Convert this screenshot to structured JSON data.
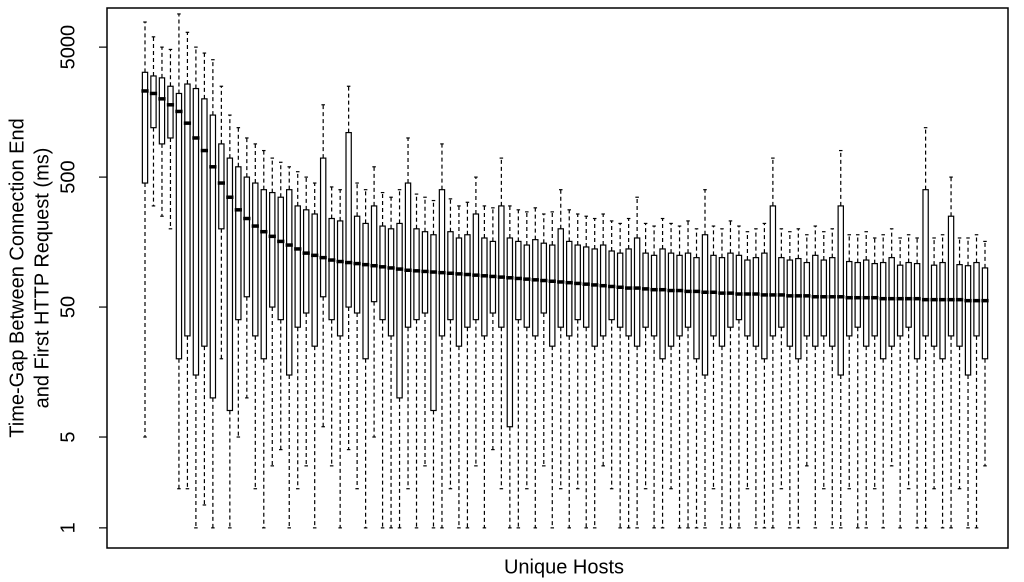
{
  "chart_data": {
    "type": "box",
    "x_label": "Unique Hosts",
    "y_label": [
      "Time-Gap Between Connection End",
      "and First HTTP Request (ms)"
    ],
    "log_y": true,
    "ylim": [
      0.7,
      10000
    ],
    "yticks": [
      1,
      5,
      50,
      500,
      5000
    ],
    "color": "#000000",
    "categories": [
      null,
      null,
      null,
      null,
      null,
      null,
      null,
      null,
      null,
      null,
      null,
      null,
      null,
      null,
      null,
      null,
      null,
      null,
      null,
      null,
      null,
      null,
      null,
      null,
      null,
      null,
      null,
      null,
      null,
      null,
      null,
      null,
      null,
      null,
      null,
      null,
      null,
      null,
      null,
      null,
      null,
      null,
      null,
      null,
      null,
      null,
      null,
      null,
      null,
      null,
      null,
      null,
      null,
      null,
      null,
      null,
      null,
      null,
      null,
      null,
      null,
      null,
      null,
      null,
      null,
      null,
      null,
      null,
      null,
      null,
      null,
      null,
      null,
      null,
      null,
      null,
      null,
      null,
      null,
      null,
      null,
      null,
      null,
      null,
      null,
      null,
      null,
      null,
      null,
      null,
      null,
      null,
      null,
      null,
      null,
      null,
      null,
      null,
      null,
      null
    ],
    "lows": [
      5,
      300,
      250,
      200,
      2,
      2,
      1,
      1.5,
      1,
      20,
      1,
      5,
      10,
      2,
      1,
      3,
      4,
      1,
      2,
      3,
      1,
      6,
      3,
      1,
      4,
      2,
      1,
      5,
      1,
      1,
      1,
      2,
      1,
      3,
      1,
      1,
      2,
      1,
      1,
      3,
      1,
      4,
      2,
      1,
      1,
      2,
      1,
      3,
      1,
      2,
      1,
      2,
      1,
      1,
      3,
      2,
      1,
      1,
      1,
      2,
      1,
      1,
      2,
      1,
      1,
      1,
      1,
      2,
      1,
      1,
      1,
      2,
      1,
      1,
      1,
      2,
      1,
      1,
      3,
      1,
      2,
      1,
      1,
      2,
      1,
      1,
      2,
      1,
      3,
      1,
      2,
      1,
      1,
      2,
      1,
      1,
      2,
      1,
      1,
      3
    ],
    "q1": [
      450,
      1200,
      900,
      1000,
      20,
      30,
      15,
      25,
      10,
      200,
      8,
      40,
      60,
      30,
      20,
      50,
      40,
      15,
      35,
      45,
      25,
      60,
      40,
      30,
      50,
      45,
      20,
      55,
      40,
      30,
      10,
      35,
      40,
      45,
      8,
      30,
      40,
      25,
      35,
      40,
      30,
      45,
      35,
      6,
      40,
      35,
      30,
      45,
      25,
      35,
      30,
      40,
      35,
      25,
      30,
      40,
      35,
      30,
      25,
      35,
      30,
      20,
      25,
      30,
      35,
      20,
      15,
      30,
      25,
      35,
      40,
      30,
      25,
      20,
      30,
      35,
      25,
      20,
      30,
      25,
      30,
      25,
      15,
      30,
      35,
      25,
      30,
      20,
      25,
      30,
      35,
      20,
      30,
      25,
      20,
      30,
      25,
      15,
      30,
      20
    ],
    "medians": [
      2300,
      2200,
      2000,
      1800,
      1600,
      1300,
      1000,
      800,
      600,
      450,
      350,
      280,
      240,
      210,
      190,
      175,
      160,
      150,
      140,
      130,
      125,
      120,
      115,
      112,
      110,
      108,
      106,
      104,
      102,
      100,
      98,
      96,
      95,
      94,
      93,
      92,
      91,
      90,
      89,
      88,
      87,
      86,
      85,
      84,
      83,
      82,
      81,
      80,
      79,
      78,
      77,
      76,
      75,
      74,
      73,
      72,
      71,
      70,
      70,
      69,
      68,
      68,
      67,
      67,
      66,
      66,
      65,
      65,
      64,
      64,
      63,
      63,
      63,
      62,
      62,
      62,
      61,
      61,
      61,
      60,
      60,
      60,
      60,
      59,
      59,
      59,
      59,
      58,
      58,
      58,
      58,
      58,
      57,
      57,
      57,
      57,
      57,
      56,
      56,
      56
    ],
    "q3": [
      3200,
      3000,
      2900,
      2500,
      2200,
      2600,
      2400,
      2000,
      1500,
      900,
      700,
      600,
      500,
      450,
      400,
      380,
      350,
      400,
      300,
      280,
      260,
      700,
      240,
      230,
      1100,
      250,
      220,
      300,
      210,
      200,
      220,
      450,
      200,
      190,
      180,
      400,
      190,
      170,
      180,
      260,
      170,
      160,
      300,
      170,
      160,
      150,
      165,
      155,
      150,
      200,
      160,
      150,
      145,
      140,
      150,
      135,
      130,
      140,
      170,
      130,
      125,
      140,
      130,
      125,
      130,
      120,
      180,
      125,
      120,
      130,
      125,
      115,
      120,
      130,
      300,
      120,
      115,
      118,
      110,
      125,
      115,
      120,
      300,
      112,
      110,
      115,
      108,
      110,
      120,
      105,
      110,
      108,
      400,
      105,
      110,
      250,
      106,
      104,
      110,
      100
    ],
    "highs": [
      7800,
      6000,
      5000,
      4800,
      9000,
      6500,
      5000,
      4500,
      4000,
      2500,
      1500,
      1200,
      1000,
      900,
      800,
      700,
      650,
      600,
      550,
      500,
      450,
      1800,
      420,
      400,
      2500,
      450,
      400,
      600,
      380,
      350,
      400,
      1000,
      370,
      350,
      330,
      900,
      340,
      300,
      320,
      500,
      300,
      290,
      700,
      300,
      280,
      270,
      290,
      260,
      270,
      400,
      280,
      260,
      250,
      240,
      260,
      230,
      220,
      240,
      350,
      220,
      210,
      240,
      220,
      210,
      230,
      200,
      400,
      210,
      200,
      230,
      210,
      190,
      200,
      220,
      700,
      200,
      190,
      200,
      180,
      210,
      190,
      200,
      800,
      180,
      180,
      190,
      170,
      180,
      200,
      170,
      180,
      170,
      1200,
      170,
      180,
      500,
      170,
      170,
      180,
      160
    ]
  }
}
